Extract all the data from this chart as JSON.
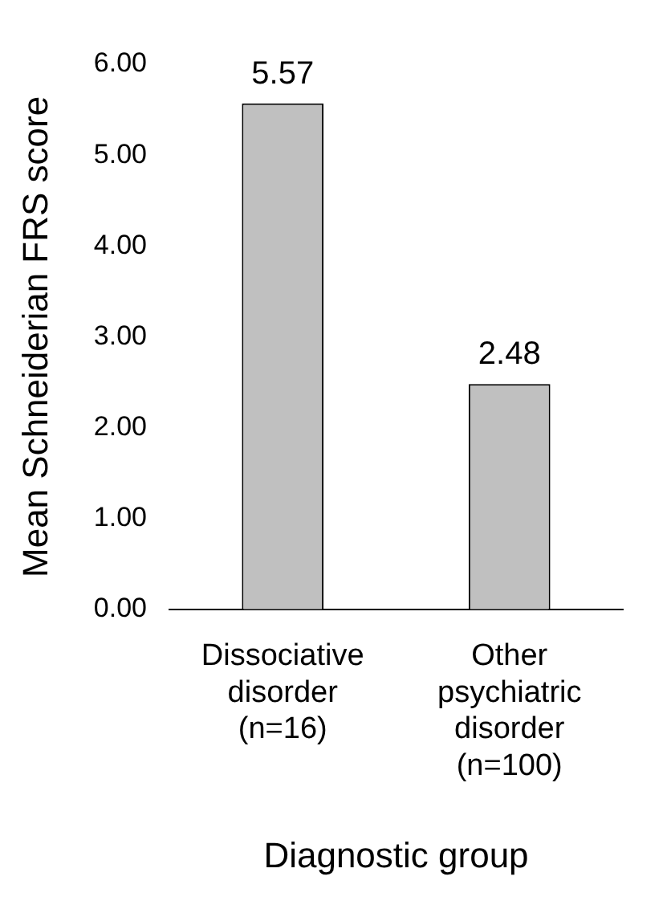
{
  "chart_data": {
    "type": "bar",
    "xlabel": "Diagnostic group",
    "ylabel": "Mean Schneiderian FRS score",
    "categories": [
      "Dissociative disorder (n=16)",
      "Other psychiatric disorder (n=100)"
    ],
    "values": [
      5.57,
      2.48
    ],
    "color": "#c0c0c0",
    "data_labels": true,
    "grid": false,
    "legend": false,
    "ylim": [
      0,
      6
    ],
    "yticks": [
      {
        "value": 0,
        "label": "0.00"
      },
      {
        "value": 1,
        "label": "1.00"
      },
      {
        "value": 2,
        "label": "2.00"
      },
      {
        "value": 3,
        "label": "3.00"
      },
      {
        "value": 4,
        "label": "4.00"
      },
      {
        "value": 5,
        "label": "5.00"
      },
      {
        "value": 6,
        "label": "6.00"
      }
    ]
  }
}
